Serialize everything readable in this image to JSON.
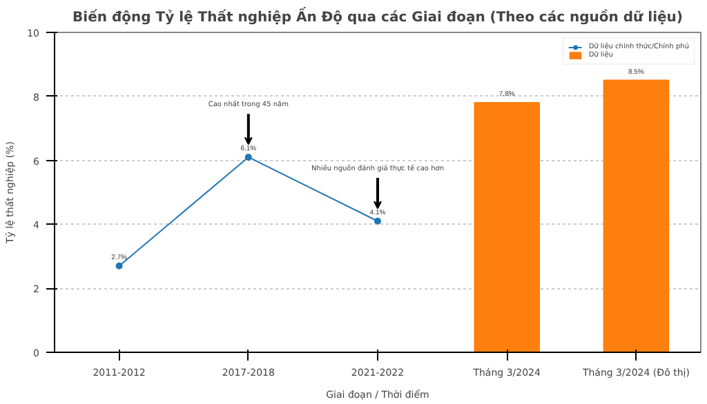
{
  "chart_data": {
    "type": "bar",
    "title": "Biến động Tỷ lệ Thất nghiệp Ấn Độ qua các Giai đoạn (Theo các nguồn dữ liệu)",
    "xlabel": "Giai đoạn / Thời điểm",
    "ylabel": "Tỷ lệ thất nghiệp (%)",
    "categories": [
      "2011-2012",
      "2017-2018",
      "2021-2022",
      "Tháng 3/2024",
      "Tháng 3/2024 (Đô thị)"
    ],
    "series": [
      {
        "name": "Dữ liệu chính thức/Chính phủ",
        "type": "line",
        "color": "#1f77b4",
        "values": [
          2.7,
          6.1,
          4.1,
          null,
          null
        ],
        "value_labels": [
          "2.7%",
          "6.1%",
          "4.1%",
          null,
          null
        ]
      },
      {
        "name": "Dữ liệu",
        "color": "#ff7f0e",
        "values": [
          null,
          null,
          null,
          7.8,
          8.5
        ],
        "value_labels": [
          null,
          null,
          null,
          "7.8%",
          "8.5%"
        ]
      }
    ],
    "annotations": [
      "Cao nhất trong 45 năm",
      "Nhiều nguồn đánh giá thực tế cao hơn"
    ],
    "ylim": [
      0,
      10
    ],
    "yticks": [
      0,
      2,
      4,
      6,
      8,
      10
    ],
    "grid": "y",
    "legend": "top right",
    "marker": "circle",
    "line_style": "solid"
  }
}
